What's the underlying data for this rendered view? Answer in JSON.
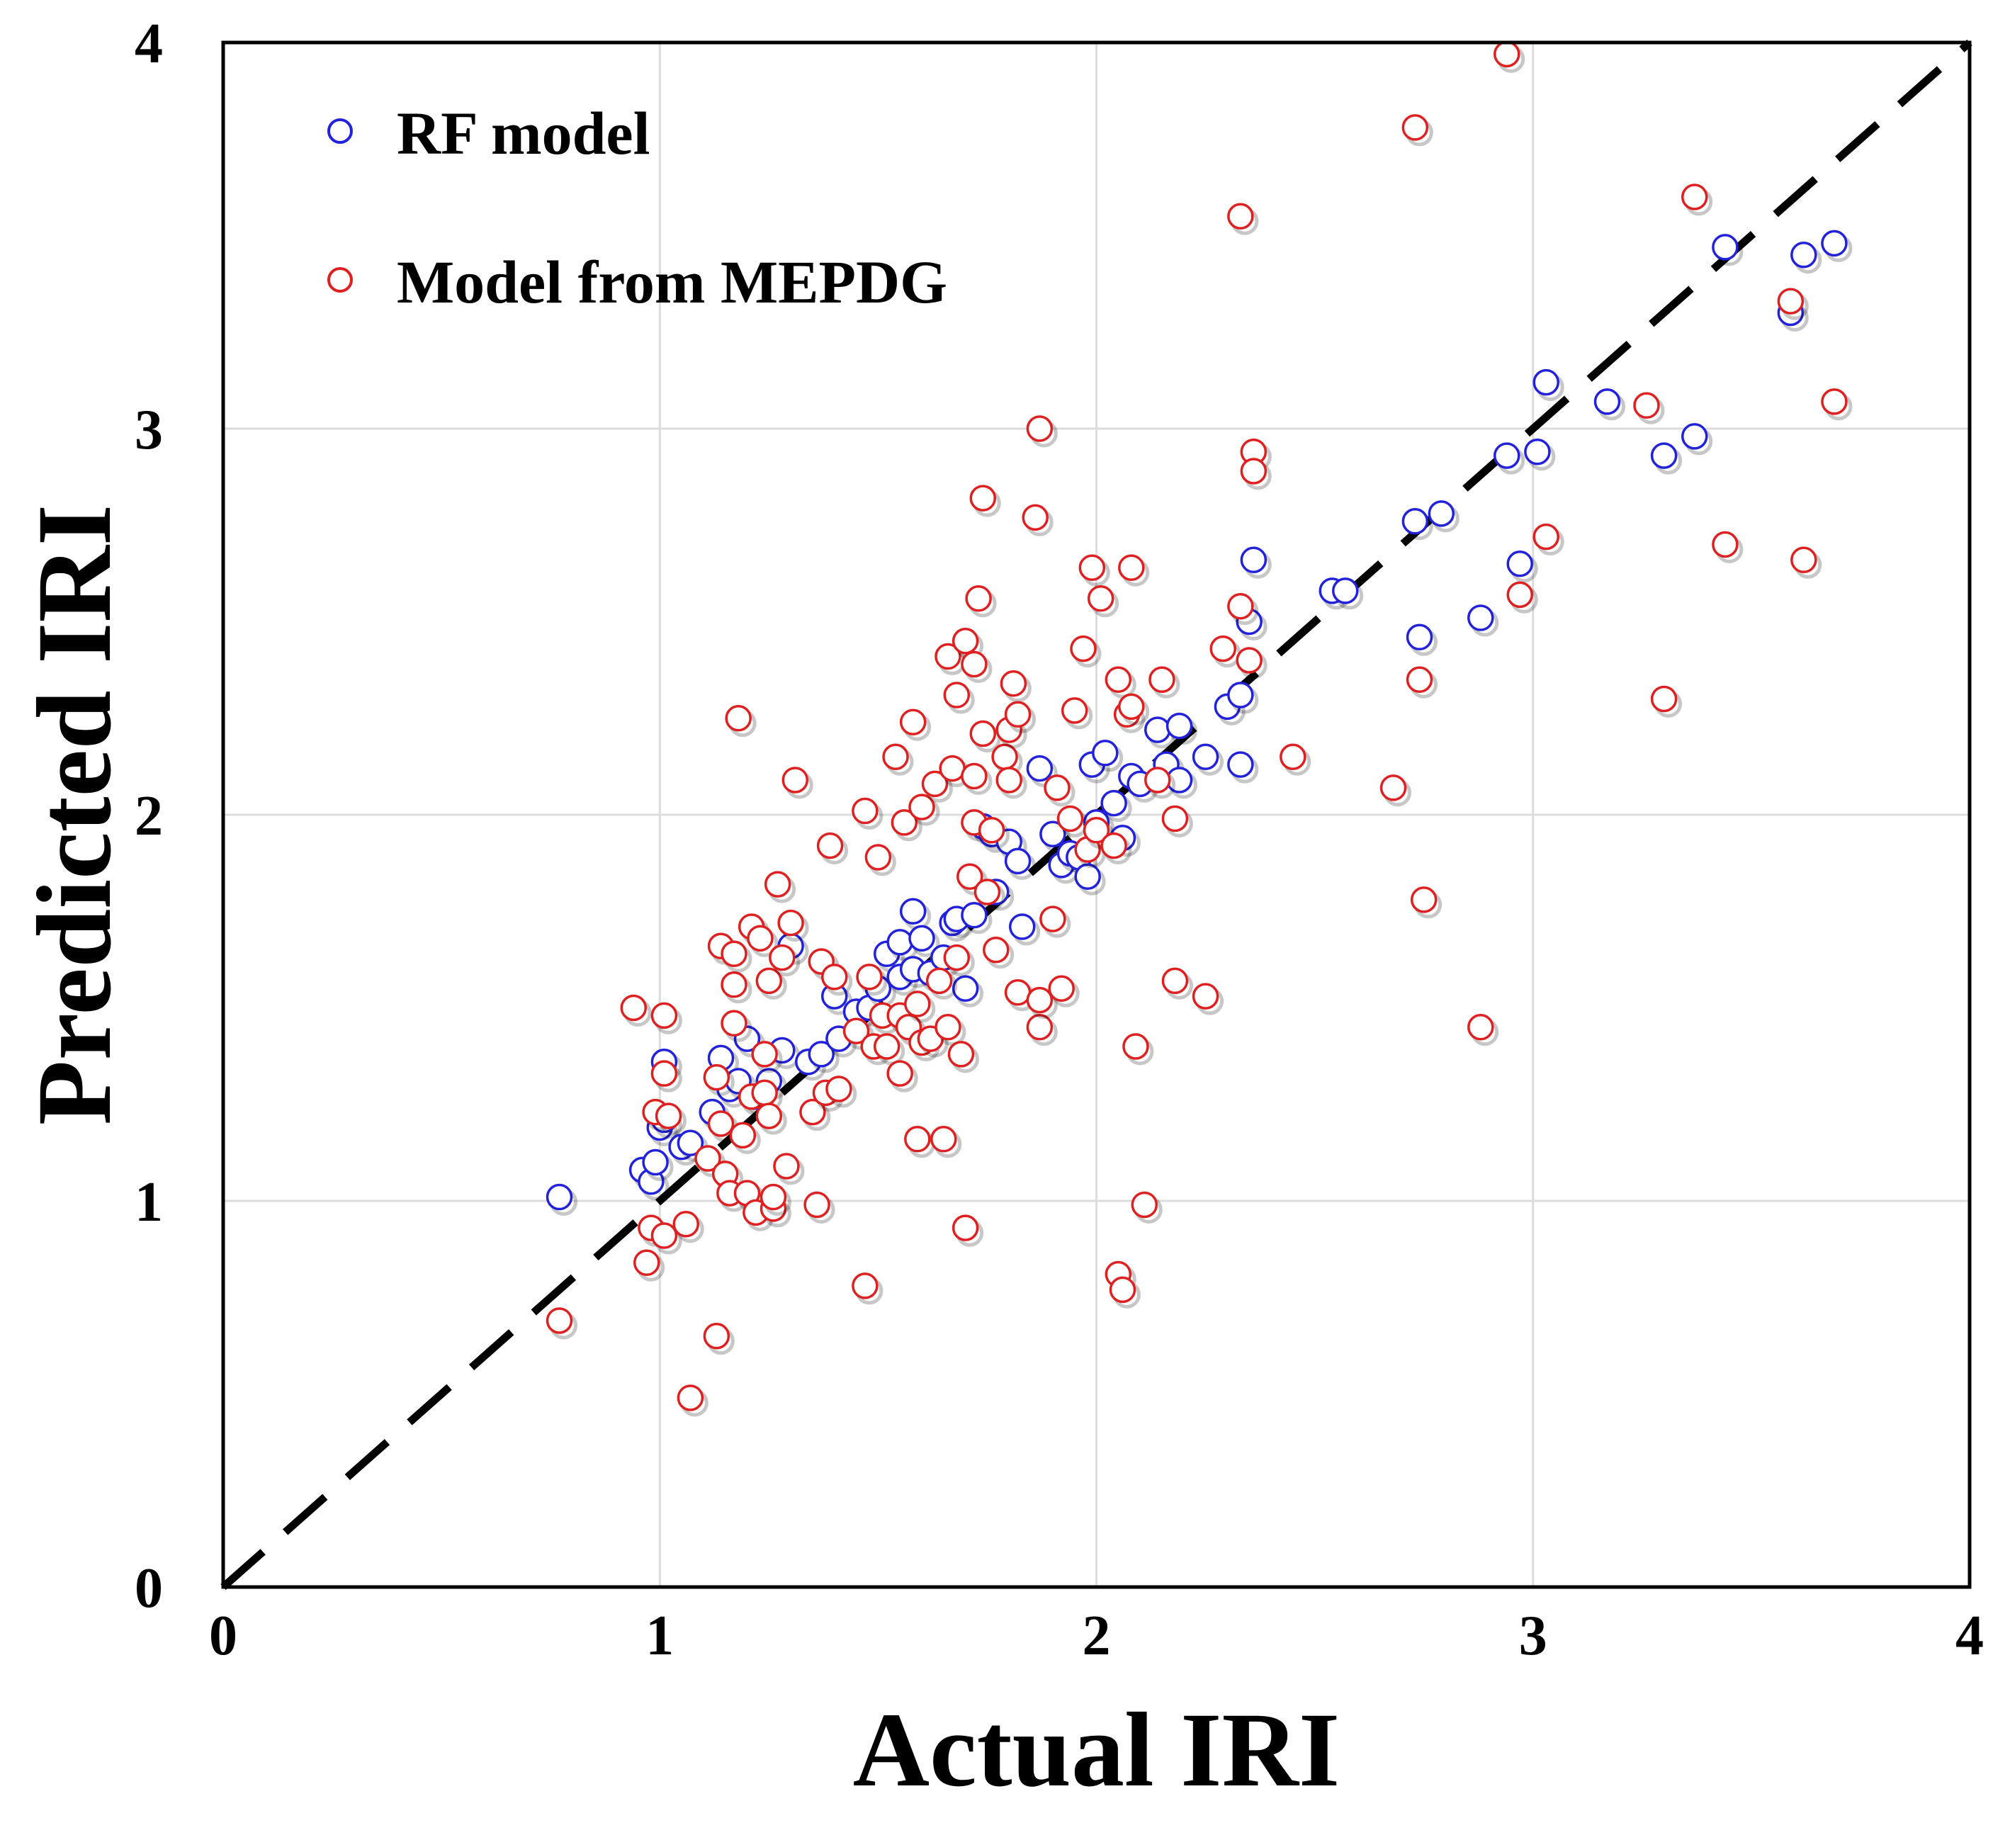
{
  "chart_data": {
    "type": "scatter",
    "title": "",
    "xlabel": "Actual IRI",
    "ylabel": "Predicted IRI",
    "xlim": [
      0,
      4
    ],
    "ylim": [
      0,
      4
    ],
    "xticks": [
      "0",
      "1",
      "2",
      "3",
      "4"
    ],
    "yticks": [
      "0",
      "1",
      "2",
      "3",
      "4"
    ],
    "grid": true,
    "legend_position": "top-left",
    "reference_line": {
      "type": "dashed",
      "x": [
        0,
        4
      ],
      "y": [
        0,
        4
      ],
      "color": "#000000"
    },
    "series": [
      {
        "name": "RF model",
        "color": "#2222dd",
        "marker": "open-circle",
        "points": [
          [
            0.77,
            1.01
          ],
          [
            0.96,
            1.08
          ],
          [
            0.98,
            1.05
          ],
          [
            0.99,
            1.1
          ],
          [
            1.0,
            1.19
          ],
          [
            1.01,
            1.21
          ],
          [
            1.01,
            1.36
          ],
          [
            1.05,
            1.14
          ],
          [
            1.07,
            1.15
          ],
          [
            1.12,
            1.23
          ],
          [
            1.14,
            1.37
          ],
          [
            1.16,
            1.29
          ],
          [
            1.18,
            1.31
          ],
          [
            1.2,
            1.42
          ],
          [
            1.22,
            1.27
          ],
          [
            1.25,
            1.31
          ],
          [
            1.28,
            1.39
          ],
          [
            1.3,
            1.66
          ],
          [
            1.34,
            1.36
          ],
          [
            1.37,
            1.38
          ],
          [
            1.4,
            1.53
          ],
          [
            1.41,
            1.42
          ],
          [
            1.45,
            1.49
          ],
          [
            1.48,
            1.5
          ],
          [
            1.5,
            1.55
          ],
          [
            1.52,
            1.64
          ],
          [
            1.55,
            1.67
          ],
          [
            1.55,
            1.58
          ],
          [
            1.58,
            1.75
          ],
          [
            1.58,
            1.6
          ],
          [
            1.6,
            1.68
          ],
          [
            1.62,
            1.59
          ],
          [
            1.65,
            1.63
          ],
          [
            1.67,
            1.72
          ],
          [
            1.68,
            1.73
          ],
          [
            1.7,
            1.55
          ],
          [
            1.72,
            1.74
          ],
          [
            1.74,
            1.97
          ],
          [
            1.76,
            1.95
          ],
          [
            1.77,
            1.8
          ],
          [
            1.8,
            1.93
          ],
          [
            1.82,
            1.88
          ],
          [
            1.83,
            1.71
          ],
          [
            1.87,
            2.12
          ],
          [
            1.9,
            1.95
          ],
          [
            1.92,
            1.87
          ],
          [
            1.94,
            1.9
          ],
          [
            1.96,
            1.89
          ],
          [
            1.98,
            1.84
          ],
          [
            1.99,
            2.13
          ],
          [
            2.0,
            1.98
          ],
          [
            2.02,
            2.16
          ],
          [
            2.04,
            2.03
          ],
          [
            2.06,
            1.94
          ],
          [
            2.08,
            2.1
          ],
          [
            2.1,
            2.08
          ],
          [
            2.14,
            2.22
          ],
          [
            2.16,
            2.13
          ],
          [
            2.19,
            2.23
          ],
          [
            2.19,
            2.09
          ],
          [
            2.25,
            2.15
          ],
          [
            2.3,
            2.28
          ],
          [
            2.33,
            2.31
          ],
          [
            2.33,
            2.13
          ],
          [
            2.35,
            2.5
          ],
          [
            2.36,
            2.66
          ],
          [
            2.54,
            2.58
          ],
          [
            2.57,
            2.58
          ],
          [
            2.73,
            2.76
          ],
          [
            2.74,
            2.46
          ],
          [
            2.79,
            2.78
          ],
          [
            2.88,
            2.51
          ],
          [
            2.94,
            2.93
          ],
          [
            2.97,
            2.65
          ],
          [
            3.01,
            2.94
          ],
          [
            3.03,
            3.12
          ],
          [
            3.17,
            3.07
          ],
          [
            3.3,
            2.93
          ],
          [
            3.37,
            2.98
          ],
          [
            3.44,
            3.47
          ],
          [
            3.59,
            3.3
          ],
          [
            3.62,
            3.45
          ],
          [
            3.69,
            3.48
          ]
        ]
      },
      {
        "name": "Model from MEPDG",
        "color": "#e02020",
        "marker": "open-circle",
        "points": [
          [
            0.77,
            0.69
          ],
          [
            0.94,
            1.5
          ],
          [
            0.97,
            0.84
          ],
          [
            0.98,
            0.93
          ],
          [
            0.99,
            1.23
          ],
          [
            1.01,
            1.48
          ],
          [
            1.01,
            1.33
          ],
          [
            1.01,
            0.91
          ],
          [
            1.02,
            1.22
          ],
          [
            1.06,
            0.94
          ],
          [
            1.07,
            0.49
          ],
          [
            1.11,
            1.11
          ],
          [
            1.13,
            0.65
          ],
          [
            1.13,
            1.32
          ],
          [
            1.14,
            1.66
          ],
          [
            1.14,
            1.2
          ],
          [
            1.15,
            1.07
          ],
          [
            1.16,
            1.02
          ],
          [
            1.17,
            1.56
          ],
          [
            1.17,
            1.64
          ],
          [
            1.17,
            1.46
          ],
          [
            1.18,
            2.25
          ],
          [
            1.19,
            1.17
          ],
          [
            1.2,
            1.02
          ],
          [
            1.21,
            1.71
          ],
          [
            1.21,
            1.27
          ],
          [
            1.22,
            0.97
          ],
          [
            1.23,
            1.68
          ],
          [
            1.24,
            1.38
          ],
          [
            1.24,
            1.28
          ],
          [
            1.25,
            1.57
          ],
          [
            1.25,
            1.22
          ],
          [
            1.26,
            0.98
          ],
          [
            1.26,
            1.01
          ],
          [
            1.27,
            1.82
          ],
          [
            1.28,
            1.63
          ],
          [
            1.29,
            1.09
          ],
          [
            1.3,
            1.72
          ],
          [
            1.31,
            2.09
          ],
          [
            1.35,
            1.23
          ],
          [
            1.36,
            0.99
          ],
          [
            1.37,
            1.62
          ],
          [
            1.38,
            1.28
          ],
          [
            1.39,
            1.92
          ],
          [
            1.4,
            1.58
          ],
          [
            1.41,
            1.29
          ],
          [
            1.45,
            1.44
          ],
          [
            1.47,
            0.78
          ],
          [
            1.47,
            2.01
          ],
          [
            1.48,
            1.58
          ],
          [
            1.49,
            1.4
          ],
          [
            1.5,
            1.89
          ],
          [
            1.51,
            1.48
          ],
          [
            1.52,
            1.4
          ],
          [
            1.54,
            2.15
          ],
          [
            1.55,
            1.33
          ],
          [
            1.55,
            1.48
          ],
          [
            1.56,
            1.98
          ],
          [
            1.57,
            1.45
          ],
          [
            1.58,
            2.24
          ],
          [
            1.59,
            1.51
          ],
          [
            1.59,
            1.16
          ],
          [
            1.6,
            1.41
          ],
          [
            1.6,
            2.02
          ],
          [
            1.62,
            1.42
          ],
          [
            1.63,
            2.08
          ],
          [
            1.64,
            1.57
          ],
          [
            1.65,
            1.16
          ],
          [
            1.66,
            1.45
          ],
          [
            1.66,
            2.41
          ],
          [
            1.67,
            2.12
          ],
          [
            1.68,
            2.31
          ],
          [
            1.68,
            1.63
          ],
          [
            1.69,
            1.38
          ],
          [
            1.7,
            0.93
          ],
          [
            1.7,
            2.45
          ],
          [
            1.71,
            1.84
          ],
          [
            1.72,
            2.39
          ],
          [
            1.72,
            2.1
          ],
          [
            1.72,
            1.98
          ],
          [
            1.73,
            2.56
          ],
          [
            1.74,
            2.82
          ],
          [
            1.74,
            2.21
          ],
          [
            1.75,
            1.8
          ],
          [
            1.76,
            1.96
          ],
          [
            1.77,
            1.65
          ],
          [
            1.79,
            2.15
          ],
          [
            1.8,
            2.09
          ],
          [
            1.8,
            2.22
          ],
          [
            1.81,
            2.34
          ],
          [
            1.82,
            1.54
          ],
          [
            1.82,
            2.26
          ],
          [
            1.86,
            2.77
          ],
          [
            1.87,
            3.0
          ],
          [
            1.87,
            1.45
          ],
          [
            1.87,
            1.52
          ],
          [
            1.9,
            1.73
          ],
          [
            1.91,
            2.07
          ],
          [
            1.92,
            1.55
          ],
          [
            1.94,
            1.99
          ],
          [
            1.95,
            2.27
          ],
          [
            1.97,
            2.43
          ],
          [
            1.98,
            1.91
          ],
          [
            1.99,
            2.64
          ],
          [
            2.0,
            1.96
          ],
          [
            2.01,
            2.56
          ],
          [
            2.04,
            1.92
          ],
          [
            2.05,
            2.35
          ],
          [
            2.05,
            0.81
          ],
          [
            2.06,
            0.77
          ],
          [
            2.07,
            2.26
          ],
          [
            2.08,
            2.28
          ],
          [
            2.08,
            2.64
          ],
          [
            2.09,
            1.4
          ],
          [
            2.11,
            0.99
          ],
          [
            2.14,
            2.09
          ],
          [
            2.15,
            2.35
          ],
          [
            2.18,
            1.57
          ],
          [
            2.18,
            1.99
          ],
          [
            2.25,
            1.53
          ],
          [
            2.29,
            2.43
          ],
          [
            2.33,
            3.55
          ],
          [
            2.33,
            2.54
          ],
          [
            2.35,
            2.4
          ],
          [
            2.36,
            2.94
          ],
          [
            2.36,
            2.89
          ],
          [
            2.45,
            2.15
          ],
          [
            2.68,
            2.07
          ],
          [
            2.73,
            3.78
          ],
          [
            2.74,
            2.35
          ],
          [
            2.75,
            1.78
          ],
          [
            2.88,
            1.45
          ],
          [
            2.94,
            3.97
          ],
          [
            2.97,
            2.57
          ],
          [
            3.03,
            2.72
          ],
          [
            3.26,
            3.06
          ],
          [
            3.3,
            2.3
          ],
          [
            3.37,
            3.6
          ],
          [
            3.44,
            2.7
          ],
          [
            3.59,
            3.33
          ],
          [
            3.62,
            2.66
          ],
          [
            3.69,
            3.07
          ]
        ]
      }
    ]
  }
}
